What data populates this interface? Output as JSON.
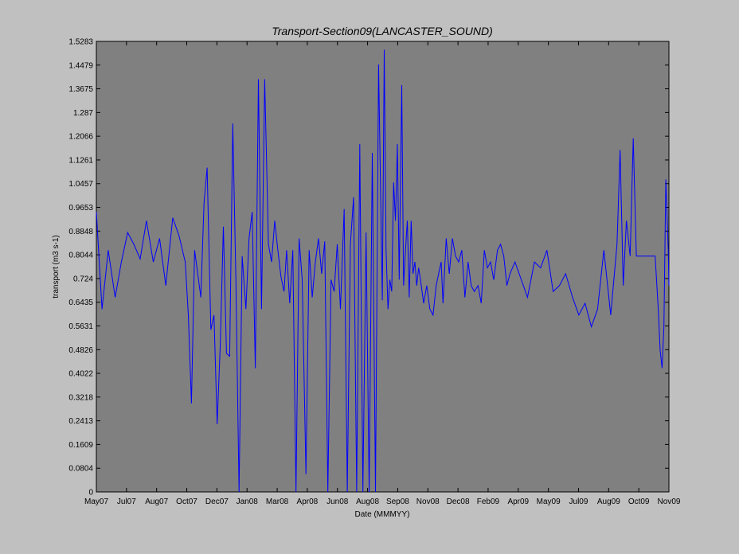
{
  "chart_data": {
    "type": "line",
    "title": "Transport-Section09(LANCASTER_SOUND)",
    "xlabel": "Date (MMMYY)",
    "ylabel": "transport (m3 s-1)",
    "ylim": [
      0,
      1.5283
    ],
    "xlim": [
      "2007-05-01",
      "2009-11-01"
    ],
    "x_ticks": [
      "May07",
      "Jul07",
      "Aug07",
      "Oct07",
      "Dec07",
      "Jan08",
      "Mar08",
      "Apr08",
      "Jun08",
      "Aug08",
      "Sep08",
      "Nov08",
      "Dec08",
      "Feb09",
      "Apr09",
      "May09",
      "Jul09",
      "Aug09",
      "Oct09",
      "Nov09"
    ],
    "y_ticks": [
      "0",
      "0.0804",
      "0.1609",
      "0.2413",
      "0.3218",
      "0.4022",
      "0.4826",
      "0.5631",
      "0.6435",
      "0.724",
      "0.8044",
      "0.8848",
      "0.9653",
      "1.0457",
      "1.1261",
      "1.2066",
      "1.287",
      "1.3675",
      "1.4479",
      "1.5283"
    ],
    "plot_background": "#808080",
    "line_color": "#0000ff",
    "grid": false,
    "series": [
      {
        "x": [
          "2007-05-01",
          "2007-05-10",
          "2007-05-20",
          "2007-05-31",
          "2007-06-10",
          "2007-06-20",
          "2007-06-30",
          "2007-07-10",
          "2007-07-20",
          "2007-07-31",
          "2007-08-10",
          "2007-08-20",
          "2007-08-31",
          "2007-09-10",
          "2007-09-20",
          "2007-09-25",
          "2007-09-30",
          "2007-10-05",
          "2007-10-15",
          "2007-10-20",
          "2007-10-25",
          "2007-10-31",
          "2007-11-05",
          "2007-11-10",
          "2007-11-15",
          "2007-11-20",
          "2007-11-25",
          "2007-11-30",
          "2007-12-05",
          "2007-12-10",
          "2007-12-15",
          "2007-12-20",
          "2007-12-26",
          "2007-12-31",
          "2008-01-05",
          "2008-01-10",
          "2008-01-15",
          "2008-01-20",
          "2008-01-25",
          "2008-01-31",
          "2008-02-05",
          "2008-02-10",
          "2008-02-15",
          "2008-02-20",
          "2008-02-25",
          "2008-02-29",
          "2008-03-05",
          "2008-03-10",
          "2008-03-15",
          "2008-03-20",
          "2008-03-25",
          "2008-03-31",
          "2008-04-05",
          "2008-04-10",
          "2008-04-15",
          "2008-04-20",
          "2008-04-25",
          "2008-04-30",
          "2008-05-05",
          "2008-05-10",
          "2008-05-15",
          "2008-05-20",
          "2008-05-25",
          "2008-05-31",
          "2008-06-05",
          "2008-06-10",
          "2008-06-15",
          "2008-06-20",
          "2008-06-25",
          "2008-06-30",
          "2008-07-05",
          "2008-07-10",
          "2008-07-15",
          "2008-07-20",
          "2008-07-25",
          "2008-07-31",
          "2008-08-03",
          "2008-08-06",
          "2008-08-09",
          "2008-08-12",
          "2008-08-15",
          "2008-08-18",
          "2008-08-21",
          "2008-08-24",
          "2008-08-27",
          "2008-08-31",
          "2008-09-03",
          "2008-09-06",
          "2008-09-09",
          "2008-09-12",
          "2008-09-15",
          "2008-09-18",
          "2008-09-21",
          "2008-09-24",
          "2008-09-27",
          "2008-09-30",
          "2008-10-05",
          "2008-10-10",
          "2008-10-15",
          "2008-10-20",
          "2008-10-25",
          "2008-10-31",
          "2008-11-02",
          "2008-11-05",
          "2008-11-10",
          "2008-11-15",
          "2008-11-20",
          "2008-11-25",
          "2008-11-30",
          "2008-12-05",
          "2008-12-10",
          "2008-12-15",
          "2008-12-20",
          "2008-12-25",
          "2008-12-31",
          "2009-01-05",
          "2009-01-10",
          "2009-01-15",
          "2009-01-20",
          "2009-01-25",
          "2009-01-31",
          "2009-02-05",
          "2009-02-10",
          "2009-02-15",
          "2009-02-20",
          "2009-02-28",
          "2009-03-10",
          "2009-03-20",
          "2009-03-31",
          "2009-04-10",
          "2009-04-20",
          "2009-04-30",
          "2009-05-10",
          "2009-05-20",
          "2009-05-31",
          "2009-06-10",
          "2009-06-20",
          "2009-06-30",
          "2009-07-10",
          "2009-07-20",
          "2009-07-31",
          "2009-08-10",
          "2009-08-15",
          "2009-08-20",
          "2009-08-25",
          "2009-08-31",
          "2009-09-05",
          "2009-09-10",
          "2009-09-15",
          "2009-09-20",
          "2009-09-30",
          "2009-10-10",
          "2009-10-15",
          "2009-10-18",
          "2009-10-21",
          "2009-10-24",
          "2009-10-27",
          "2009-10-31",
          "2009-11-01"
        ],
        "y": [
          0.95,
          0.62,
          0.82,
          0.66,
          0.78,
          0.88,
          0.84,
          0.79,
          0.92,
          0.78,
          0.86,
          0.7,
          0.93,
          0.87,
          0.78,
          0.6,
          0.3,
          0.82,
          0.66,
          0.98,
          1.1,
          0.55,
          0.6,
          0.23,
          0.5,
          0.9,
          0.47,
          0.46,
          1.25,
          0.72,
          0.0,
          0.8,
          0.62,
          0.86,
          0.95,
          0.42,
          1.4,
          0.62,
          1.4,
          0.84,
          0.78,
          0.92,
          0.82,
          0.73,
          0.68,
          0.82,
          0.64,
          0.82,
          0.0,
          0.86,
          0.72,
          0.06,
          0.82,
          0.66,
          0.78,
          0.86,
          0.74,
          0.85,
          0.0,
          0.72,
          0.68,
          0.84,
          0.62,
          0.96,
          0.0,
          0.84,
          1.0,
          0.0,
          1.18,
          0.0,
          0.88,
          0.0,
          1.15,
          0.0,
          1.45,
          0.65,
          1.5,
          0.82,
          0.62,
          0.72,
          0.68,
          1.05,
          0.92,
          1.18,
          0.72,
          1.38,
          0.7,
          0.82,
          0.92,
          0.66,
          0.92,
          0.74,
          0.78,
          0.7,
          0.76,
          0.72,
          0.64,
          0.7,
          0.62,
          0.6,
          0.7,
          0.76,
          0.78,
          0.64,
          0.86,
          0.74,
          0.86,
          0.8,
          0.78,
          0.82,
          0.66,
          0.78,
          0.7,
          0.68,
          0.7,
          0.64,
          0.82,
          0.76,
          0.78,
          0.72,
          0.82,
          0.84,
          0.8,
          0.7,
          0.74,
          0.78,
          0.72,
          0.66,
          0.78,
          0.76,
          0.82,
          0.68,
          0.7,
          0.74,
          0.66,
          0.6,
          0.64,
          0.56,
          0.62,
          0.82,
          0.6,
          0.84,
          1.16,
          0.7,
          0.92,
          0.8,
          1.2,
          0.8,
          0.8,
          0.8,
          0.8,
          0.8,
          0.62,
          0.48,
          0.42,
          0.56,
          1.06,
          0.82,
          0.7
        ]
      }
    ]
  }
}
